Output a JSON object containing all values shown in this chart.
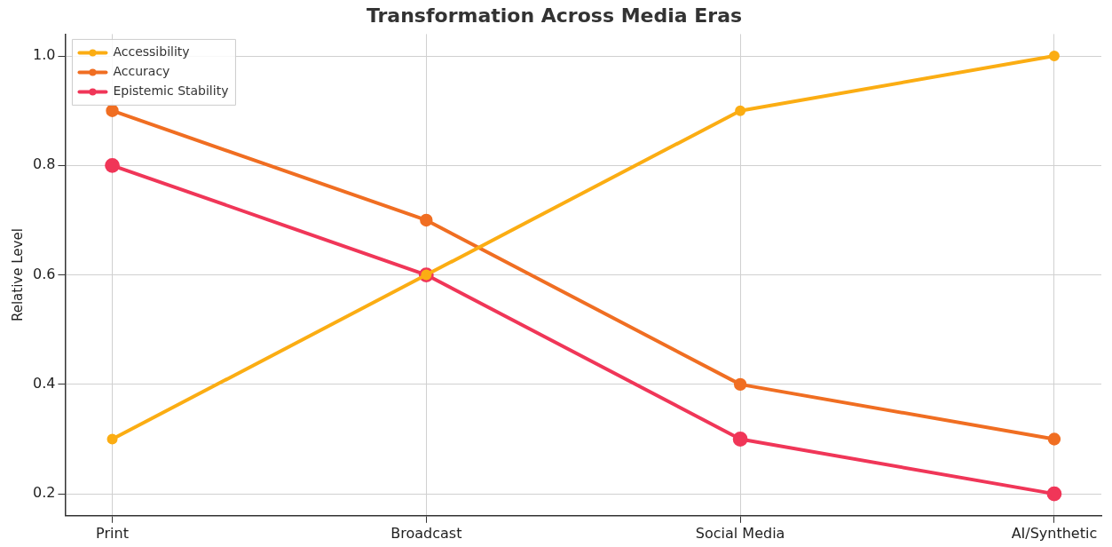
{
  "chart_data": {
    "type": "line",
    "title": "Transformation Across Media Eras",
    "ylabel": "Relative Level",
    "categories": [
      "Print",
      "Broadcast",
      "Social Media",
      "AI/Synthetic"
    ],
    "series": [
      {
        "name": "Accessibility",
        "color": "#fbad13",
        "values": [
          0.3,
          0.6,
          0.9,
          1.0
        ]
      },
      {
        "name": "Accuracy",
        "color": "#f06e22",
        "values": [
          0.9,
          0.7,
          0.4,
          0.3
        ]
      },
      {
        "name": "Epistemic Stability",
        "color": "#f03658",
        "values": [
          0.8,
          0.6,
          0.3,
          0.2
        ]
      }
    ],
    "ylim": [
      0.16,
      1.04
    ],
    "yticks": [
      {
        "value": 0.2,
        "label": "0.2"
      },
      {
        "value": 0.4,
        "label": "0.4"
      },
      {
        "value": 0.6,
        "label": "0.6"
      },
      {
        "value": 0.8,
        "label": "0.8"
      },
      {
        "value": 1.0,
        "label": "1.0"
      }
    ],
    "grid": true,
    "legend": "top left",
    "marker": "circle",
    "line_style": "solid"
  }
}
